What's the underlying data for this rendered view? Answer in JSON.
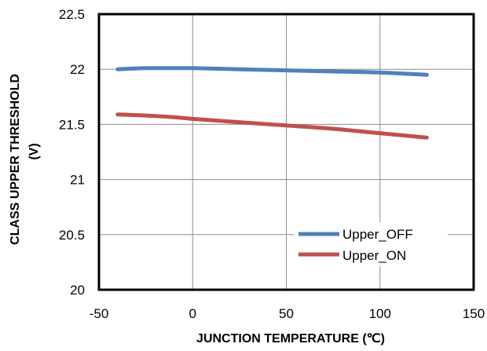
{
  "chart_data": {
    "type": "line",
    "title": "",
    "xlabel": "JUNCTION TEMPERATURE (℃)",
    "ylabel_line1": "CLASS UPPER THRESHOLD",
    "ylabel_line2": "(V)",
    "xlim": [
      -50,
      150
    ],
    "ylim": [
      20,
      22.5
    ],
    "x_ticks": [
      "-50",
      "0",
      "50",
      "100",
      "150"
    ],
    "x_tick_values": [
      -50,
      0,
      50,
      100,
      150
    ],
    "y_ticks": [
      "20",
      "20.5",
      "21",
      "21.5",
      "22",
      "22.5"
    ],
    "y_tick_values": [
      20,
      20.5,
      21,
      21.5,
      22,
      22.5
    ],
    "grid": true,
    "legend_position": "bottom-right",
    "series": [
      {
        "name": "Upper_OFF",
        "color": "#4f81bd",
        "x": [
          -40,
          -25,
          -10,
          0,
          25,
          50,
          75,
          100,
          125
        ],
        "y": [
          22.0,
          22.01,
          22.01,
          22.01,
          22.0,
          21.99,
          21.98,
          21.97,
          21.95
        ]
      },
      {
        "name": "Upper_ON",
        "color": "#c0504d",
        "x": [
          -40,
          -25,
          -10,
          0,
          25,
          50,
          75,
          100,
          125
        ],
        "y": [
          21.59,
          21.58,
          21.565,
          21.55,
          21.52,
          21.49,
          21.46,
          21.42,
          21.38
        ]
      }
    ]
  }
}
